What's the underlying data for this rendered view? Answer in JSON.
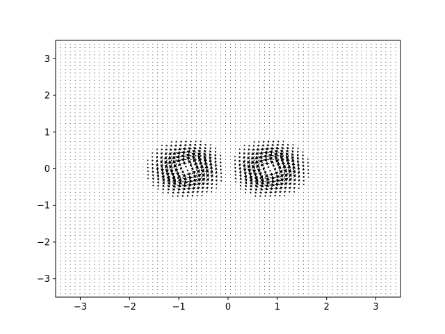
{
  "chart_data": {
    "type": "quiver",
    "title": "",
    "xlabel": "",
    "ylabel": "",
    "xlim": [
      -3.5,
      3.5
    ],
    "ylim": [
      -3.5,
      3.5
    ],
    "xticks": [
      -3,
      -2,
      -1,
      0,
      1,
      2,
      3
    ],
    "yticks": [
      -3,
      -2,
      -1,
      0,
      1,
      2,
      3
    ],
    "xtick_labels": [
      "−3",
      "−2",
      "−1",
      "0",
      "1",
      "2",
      "3"
    ],
    "ytick_labels": [
      "−3",
      "−2",
      "−1",
      "0",
      "1",
      "2",
      "3"
    ],
    "grid": false,
    "legend": "none",
    "arrow_color": "#000000",
    "field": {
      "grid_x": {
        "start": -3.4,
        "stop": 3.4,
        "count": 70
      },
      "grid_y": {
        "start": -3.4,
        "stop": 3.4,
        "count": 70
      },
      "vortices": [
        {
          "center": [
            -0.85,
            0.0
          ],
          "rotation": "counterclockwise",
          "core_radius": 0.45,
          "peak_speed": 1.0
        },
        {
          "center": [
            0.85,
            0.0
          ],
          "rotation": "counterclockwise",
          "core_radius": 0.45,
          "peak_speed": 1.0
        }
      ]
    }
  }
}
